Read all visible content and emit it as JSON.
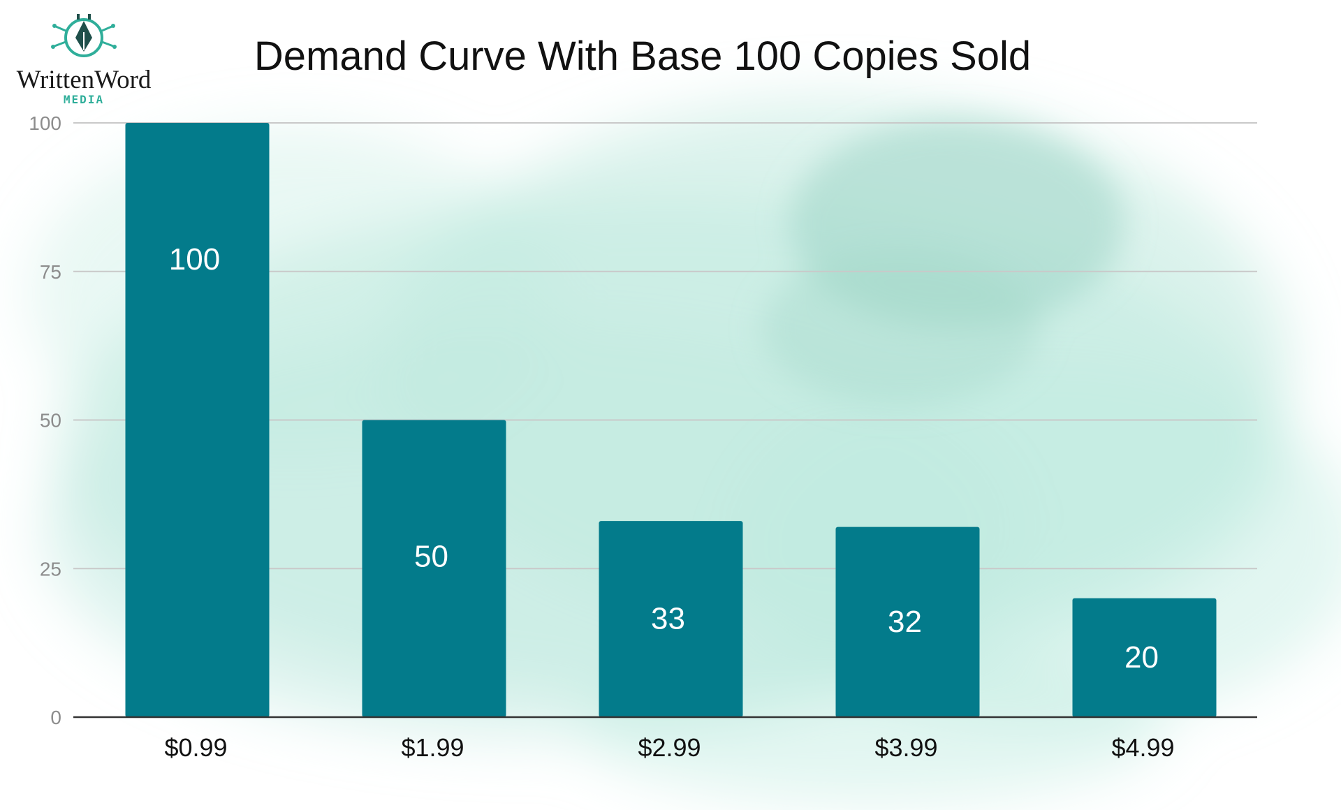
{
  "logo": {
    "name": "WrittenWord",
    "subtitle": "MEDIA",
    "accent_color": "#2fae9a"
  },
  "chart_data": {
    "type": "bar",
    "title": "Demand Curve With Base 100 Copies Sold",
    "xlabel": "",
    "ylabel": "",
    "categories": [
      "$0.99",
      "$1.99",
      "$2.99",
      "$3.99",
      "$4.99"
    ],
    "values": [
      100,
      50,
      33,
      32,
      20
    ],
    "data_labels": [
      "100",
      "50",
      "33",
      "32",
      "20"
    ],
    "ylim": [
      0,
      100
    ],
    "yticks": [
      0,
      25,
      50,
      75,
      100
    ],
    "grid": true,
    "legend": "none",
    "bar_color": "#037b8b",
    "background_color": "#bfeadf"
  }
}
